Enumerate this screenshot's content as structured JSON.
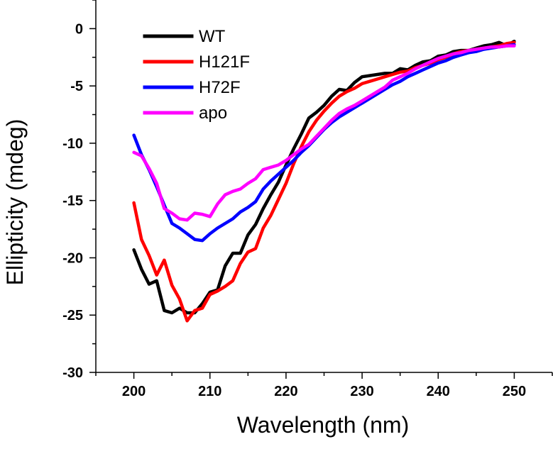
{
  "chart_data": {
    "type": "line",
    "title": "",
    "xlabel": "Wavelength (nm)",
    "ylabel": "Ellipticity (mdeg)",
    "xlim": [
      195,
      255
    ],
    "ylim": [
      -30,
      2.5
    ],
    "xticks": [
      200,
      210,
      220,
      230,
      240,
      250
    ],
    "xtick_labels": [
      "200",
      "210",
      "220",
      "230",
      "240",
      "250"
    ],
    "yticks": [
      0,
      -5,
      -10,
      -15,
      -20,
      -25,
      -30
    ],
    "ytick_labels": [
      "0",
      "-5",
      "-10",
      "-15",
      "-20",
      "-25",
      "-30"
    ],
    "grid": false,
    "legend_position": "top-left",
    "x": [
      200,
      201,
      202,
      203,
      204,
      205,
      206,
      207,
      208,
      209,
      210,
      211,
      212,
      213,
      214,
      215,
      216,
      217,
      218,
      219,
      220,
      221,
      222,
      223,
      224,
      225,
      226,
      227,
      228,
      229,
      230,
      231,
      232,
      233,
      234,
      235,
      236,
      237,
      238,
      239,
      240,
      241,
      242,
      243,
      244,
      245,
      246,
      247,
      248,
      249,
      250
    ],
    "series": [
      {
        "name": "WT",
        "color": "#000000",
        "values": [
          -19.3,
          -21.0,
          -22.3,
          -22.0,
          -24.6,
          -24.8,
          -24.4,
          -24.8,
          -24.8,
          -24.0,
          -23.0,
          -22.8,
          -20.7,
          -19.6,
          -19.6,
          -18.0,
          -17.1,
          -15.7,
          -14.5,
          -13.4,
          -11.9,
          -10.5,
          -9.2,
          -7.8,
          -7.3,
          -6.7,
          -5.9,
          -5.3,
          -5.4,
          -4.7,
          -4.2,
          -4.1,
          -4.0,
          -3.9,
          -3.9,
          -3.5,
          -3.6,
          -3.2,
          -2.9,
          -2.8,
          -2.4,
          -2.3,
          -2.0,
          -1.9,
          -1.9,
          -1.7,
          -1.5,
          -1.4,
          -1.2,
          -1.5,
          -1.1
        ]
      },
      {
        "name": "H121F",
        "color": "#ff0000",
        "values": [
          -15.2,
          -18.4,
          -19.8,
          -21.5,
          -20.2,
          -22.4,
          -23.6,
          -25.5,
          -24.6,
          -24.4,
          -23.2,
          -22.9,
          -22.5,
          -22.0,
          -20.5,
          -19.5,
          -19.2,
          -17.4,
          -16.3,
          -14.9,
          -13.5,
          -11.8,
          -10.3,
          -9.0,
          -8.0,
          -7.2,
          -6.5,
          -5.9,
          -5.5,
          -5.2,
          -4.8,
          -4.6,
          -4.4,
          -4.2,
          -4.0,
          -3.8,
          -3.7,
          -3.4,
          -3.2,
          -3.0,
          -2.7,
          -2.5,
          -2.2,
          -2.0,
          -1.9,
          -1.8,
          -1.7,
          -1.6,
          -1.5,
          -1.3,
          -1.2
        ]
      },
      {
        "name": "H72F",
        "color": "#0000ff",
        "values": [
          -9.3,
          -11.0,
          -12.3,
          -13.8,
          -15.4,
          -17.0,
          -17.4,
          -17.9,
          -18.4,
          -18.5,
          -17.9,
          -17.4,
          -17.0,
          -16.6,
          -16.0,
          -15.6,
          -15.1,
          -14.0,
          -13.3,
          -12.7,
          -12.1,
          -11.5,
          -10.8,
          -10.2,
          -9.5,
          -8.8,
          -8.2,
          -7.7,
          -7.3,
          -6.9,
          -6.5,
          -6.1,
          -5.7,
          -5.3,
          -4.9,
          -4.6,
          -4.2,
          -3.9,
          -3.6,
          -3.3,
          -3.0,
          -2.8,
          -2.5,
          -2.3,
          -2.1,
          -2.0,
          -1.8,
          -1.7,
          -1.6,
          -1.5,
          -1.4
        ]
      },
      {
        "name": "apo",
        "color": "#ff00ff",
        "values": [
          -10.8,
          -11.1,
          -12.2,
          -13.5,
          -15.7,
          -16.1,
          -16.6,
          -16.7,
          -16.1,
          -16.2,
          -16.4,
          -15.3,
          -14.5,
          -14.2,
          -14.0,
          -13.5,
          -13.1,
          -12.3,
          -12.1,
          -11.9,
          -11.5,
          -11.0,
          -10.5,
          -10.1,
          -9.4,
          -8.7,
          -8.0,
          -7.4,
          -7.0,
          -6.7,
          -6.3,
          -5.9,
          -5.5,
          -5.1,
          -4.5,
          -4.2,
          -3.9,
          -3.5,
          -3.2,
          -2.9,
          -2.6,
          -2.4,
          -2.2,
          -2.1,
          -1.9,
          -1.8,
          -1.7,
          -1.6,
          -1.6,
          -1.5,
          -1.5
        ]
      }
    ]
  }
}
